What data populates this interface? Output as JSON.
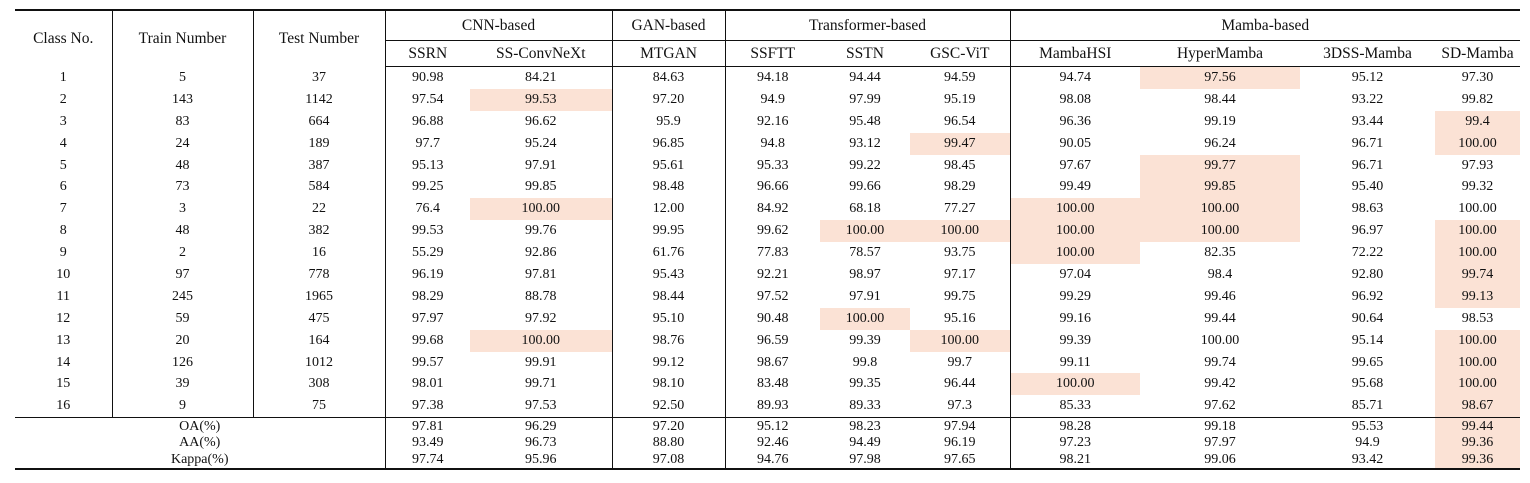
{
  "table": {
    "header": {
      "row_label_columns": [
        "Class No.",
        "Train Number",
        "Test Number"
      ],
      "groups": [
        {
          "label": "CNN-based",
          "methods": [
            {
              "name": "SSRN",
              "bold": false
            },
            {
              "name": "SS-ConvNeXt",
              "bold": false
            }
          ]
        },
        {
          "label": "GAN-based",
          "methods": [
            {
              "name": "MTGAN",
              "bold": false
            }
          ]
        },
        {
          "label": "Transformer-based",
          "methods": [
            {
              "name": "SSFTT",
              "bold": false
            },
            {
              "name": "SSTN",
              "bold": false
            },
            {
              "name": "GSC-ViT",
              "bold": false
            }
          ]
        },
        {
          "label": "Mamba-based",
          "methods": [
            {
              "name": "MambaHSI",
              "bold": false
            },
            {
              "name": "HyperMamba",
              "bold": false
            },
            {
              "name": "3DSS-Mamba",
              "bold": false
            },
            {
              "name": "SD-Mamba",
              "bold": true
            }
          ]
        }
      ]
    },
    "rows": [
      {
        "cells": [
          "1",
          "5",
          "37",
          "90.98",
          "84.21",
          "84.63",
          "94.18",
          "94.44",
          "94.59",
          "94.74",
          "97.56",
          "95.12",
          "97.30"
        ],
        "bold": [
          10
        ],
        "highlight": [
          10
        ]
      },
      {
        "cells": [
          "2",
          "143",
          "1142",
          "97.54",
          "99.53",
          "97.20",
          "94.9",
          "97.99",
          "95.19",
          "98.08",
          "98.44",
          "93.22",
          "99.82"
        ],
        "bold": [
          4
        ],
        "highlight": [
          4
        ]
      },
      {
        "cells": [
          "3",
          "83",
          "664",
          "96.88",
          "96.62",
          "95.9",
          "92.16",
          "95.48",
          "96.54",
          "96.36",
          "99.19",
          "93.44",
          "99.4"
        ],
        "bold": [
          12
        ],
        "highlight": [
          12
        ]
      },
      {
        "cells": [
          "4",
          "24",
          "189",
          "97.7",
          "95.24",
          "96.85",
          "94.8",
          "93.12",
          "99.47",
          "90.05",
          "96.24",
          "96.71",
          "100.00"
        ],
        "bold": [
          8,
          12
        ],
        "highlight": [
          8,
          12
        ]
      },
      {
        "cells": [
          "5",
          "48",
          "387",
          "95.13",
          "97.91",
          "95.61",
          "95.33",
          "99.22",
          "98.45",
          "97.67",
          "99.77",
          "96.71",
          "97.93"
        ],
        "bold": [
          10
        ],
        "highlight": [
          10
        ]
      },
      {
        "cells": [
          "6",
          "73",
          "584",
          "99.25",
          "99.85",
          "98.48",
          "96.66",
          "99.66",
          "98.29",
          "99.49",
          "99.85",
          "95.40",
          "99.32"
        ],
        "bold": [
          10
        ],
        "highlight": [
          10
        ]
      },
      {
        "cells": [
          "7",
          "3",
          "22",
          "76.4",
          "100.00",
          "12.00",
          "84.92",
          "68.18",
          "77.27",
          "100.00",
          "100.00",
          "98.63",
          "100.00"
        ],
        "bold": [
          4,
          9,
          10,
          12
        ],
        "highlight": [
          4,
          9,
          10
        ]
      },
      {
        "cells": [
          "8",
          "48",
          "382",
          "99.53",
          "99.76",
          "99.95",
          "99.62",
          "100.00",
          "100.00",
          "100.00",
          "100.00",
          "96.97",
          "100.00"
        ],
        "bold": [
          7,
          8,
          9,
          10,
          12
        ],
        "highlight": [
          7,
          8,
          9,
          10,
          12
        ]
      },
      {
        "cells": [
          "9",
          "2",
          "16",
          "55.29",
          "92.86",
          "61.76",
          "77.83",
          "78.57",
          "93.75",
          "100.00",
          "82.35",
          "72.22",
          "100.00"
        ],
        "bold": [
          9,
          12
        ],
        "highlight": [
          9,
          12
        ]
      },
      {
        "cells": [
          "10",
          "97",
          "778",
          "96.19",
          "97.81",
          "95.43",
          "92.21",
          "98.97",
          "97.17",
          "97.04",
          "98.4",
          "92.80",
          "99.74"
        ],
        "bold": [
          12
        ],
        "highlight": [
          12
        ]
      },
      {
        "cells": [
          "11",
          "245",
          "1965",
          "98.29",
          "88.78",
          "98.44",
          "97.52",
          "97.91",
          "99.75",
          "99.29",
          "99.46",
          "96.92",
          "99.13"
        ],
        "bold": [
          12
        ],
        "highlight": [
          12
        ]
      },
      {
        "cells": [
          "12",
          "59",
          "475",
          "97.97",
          "97.92",
          "95.10",
          "90.48",
          "100.00",
          "95.16",
          "99.16",
          "99.44",
          "90.64",
          "98.53"
        ],
        "bold": [
          7
        ],
        "highlight": [
          7
        ]
      },
      {
        "cells": [
          "13",
          "20",
          "164",
          "99.68",
          "100.00",
          "98.76",
          "96.59",
          "99.39",
          "100.00",
          "99.39",
          "100.00",
          "95.14",
          "100.00"
        ],
        "bold": [
          4,
          8,
          12
        ],
        "highlight": [
          4,
          8,
          12
        ]
      },
      {
        "cells": [
          "14",
          "126",
          "1012",
          "99.57",
          "99.91",
          "99.12",
          "98.67",
          "99.8",
          "99.7",
          "99.11",
          "99.74",
          "99.65",
          "100.00"
        ],
        "bold": [
          12
        ],
        "highlight": [
          12
        ]
      },
      {
        "cells": [
          "15",
          "39",
          "308",
          "98.01",
          "99.71",
          "98.10",
          "83.48",
          "99.35",
          "96.44",
          "100.00",
          "99.42",
          "95.68",
          "100.00"
        ],
        "bold": [
          9,
          12
        ],
        "highlight": [
          9,
          12
        ]
      },
      {
        "cells": [
          "16",
          "9",
          "75",
          "97.38",
          "97.53",
          "92.50",
          "89.93",
          "89.33",
          "97.3",
          "85.33",
          "97.62",
          "85.71",
          "98.67"
        ],
        "bold": [
          12
        ],
        "highlight": [
          12
        ]
      }
    ],
    "footer": [
      {
        "label": "OA(%)",
        "cells": [
          "97.81",
          "96.29",
          "97.20",
          "95.12",
          "98.23",
          "97.94",
          "98.28",
          "99.18",
          "95.53",
          "99.44"
        ],
        "bold": [
          9
        ],
        "highlight": [
          9
        ]
      },
      {
        "label": "AA(%)",
        "cells": [
          "93.49",
          "96.73",
          "88.80",
          "92.46",
          "94.49",
          "96.19",
          "97.23",
          "97.97",
          "94.9",
          "99.36"
        ],
        "bold": [
          9
        ],
        "highlight": [
          9
        ]
      },
      {
        "label": "Kappa(%)",
        "cells": [
          "97.74",
          "95.96",
          "97.08",
          "94.76",
          "97.98",
          "97.65",
          "98.21",
          "99.06",
          "93.42",
          "99.36"
        ],
        "bold": [
          9
        ],
        "highlight": [
          9
        ]
      }
    ],
    "styles": {
      "highlight_color": "#fbe2d5",
      "rule_color": "#111111"
    }
  }
}
